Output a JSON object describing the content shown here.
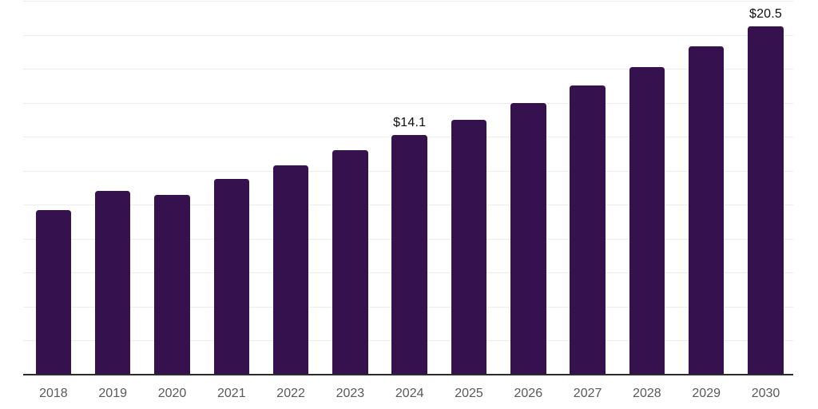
{
  "chart_data": {
    "type": "bar",
    "title": "",
    "xlabel": "",
    "ylabel": "",
    "categories": [
      "2018",
      "2019",
      "2020",
      "2021",
      "2022",
      "2023",
      "2024",
      "2025",
      "2026",
      "2027",
      "2028",
      "2029",
      "2030"
    ],
    "values": [
      9.7,
      10.8,
      10.6,
      11.5,
      12.3,
      13.2,
      14.1,
      15.0,
      16.0,
      17.0,
      18.1,
      19.3,
      20.5
    ],
    "value_labels": {
      "2024": "$14.1",
      "2030": "$20.5"
    },
    "ylim": [
      0,
      22
    ],
    "gridline_step": 2,
    "grid": true,
    "legend": false,
    "colors": {
      "bar": "#35114E",
      "gridline": "#EDEDED",
      "axis_line": "#2B2B2B",
      "tick_label": "#58595B",
      "value_label": "#0F0F0F",
      "background": "#FFFFFF"
    }
  }
}
